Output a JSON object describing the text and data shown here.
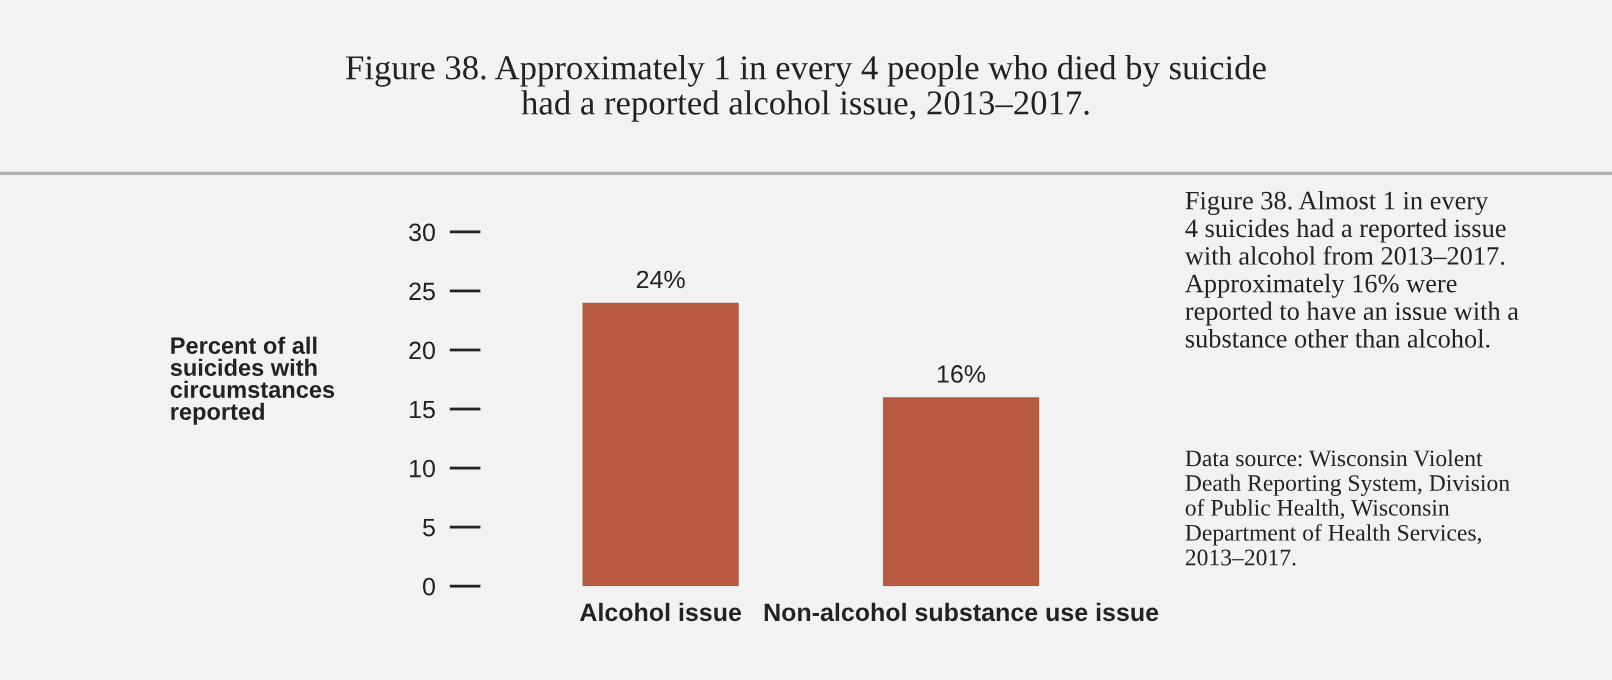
{
  "chart_data": {
    "type": "bar",
    "title": "Figure 38. Approximately 1 in every 4 people who died by suicide\nhad a reported alcohol issue, 2013–2017.",
    "ylabel": "Percent of all\nsuicides with\ncircumstances\nreported",
    "categories": [
      "Alcohol issue",
      "Non-alcohol substance use issue"
    ],
    "values": [
      24,
      16
    ],
    "value_labels": [
      "24%",
      "16%"
    ],
    "color": "#b85a40",
    "ylim": [
      0,
      30
    ],
    "yticks": [
      0,
      5,
      10,
      15,
      20,
      25,
      30
    ],
    "grid": false,
    "legend": false,
    "annotations": [
      "Figure 38. Almost 1 in every\n4 suicides had a reported issue\nwith alcohol from 2013–2017.\nApproximately 16% were\nreported to have an issue with a\nsubstance other than alcohol.",
      "Data source: Wisconsin Violent\nDeath Reporting System, Division\nof Public Health, Wisconsin\nDepartment of Health Services,\n2013–2017."
    ]
  }
}
